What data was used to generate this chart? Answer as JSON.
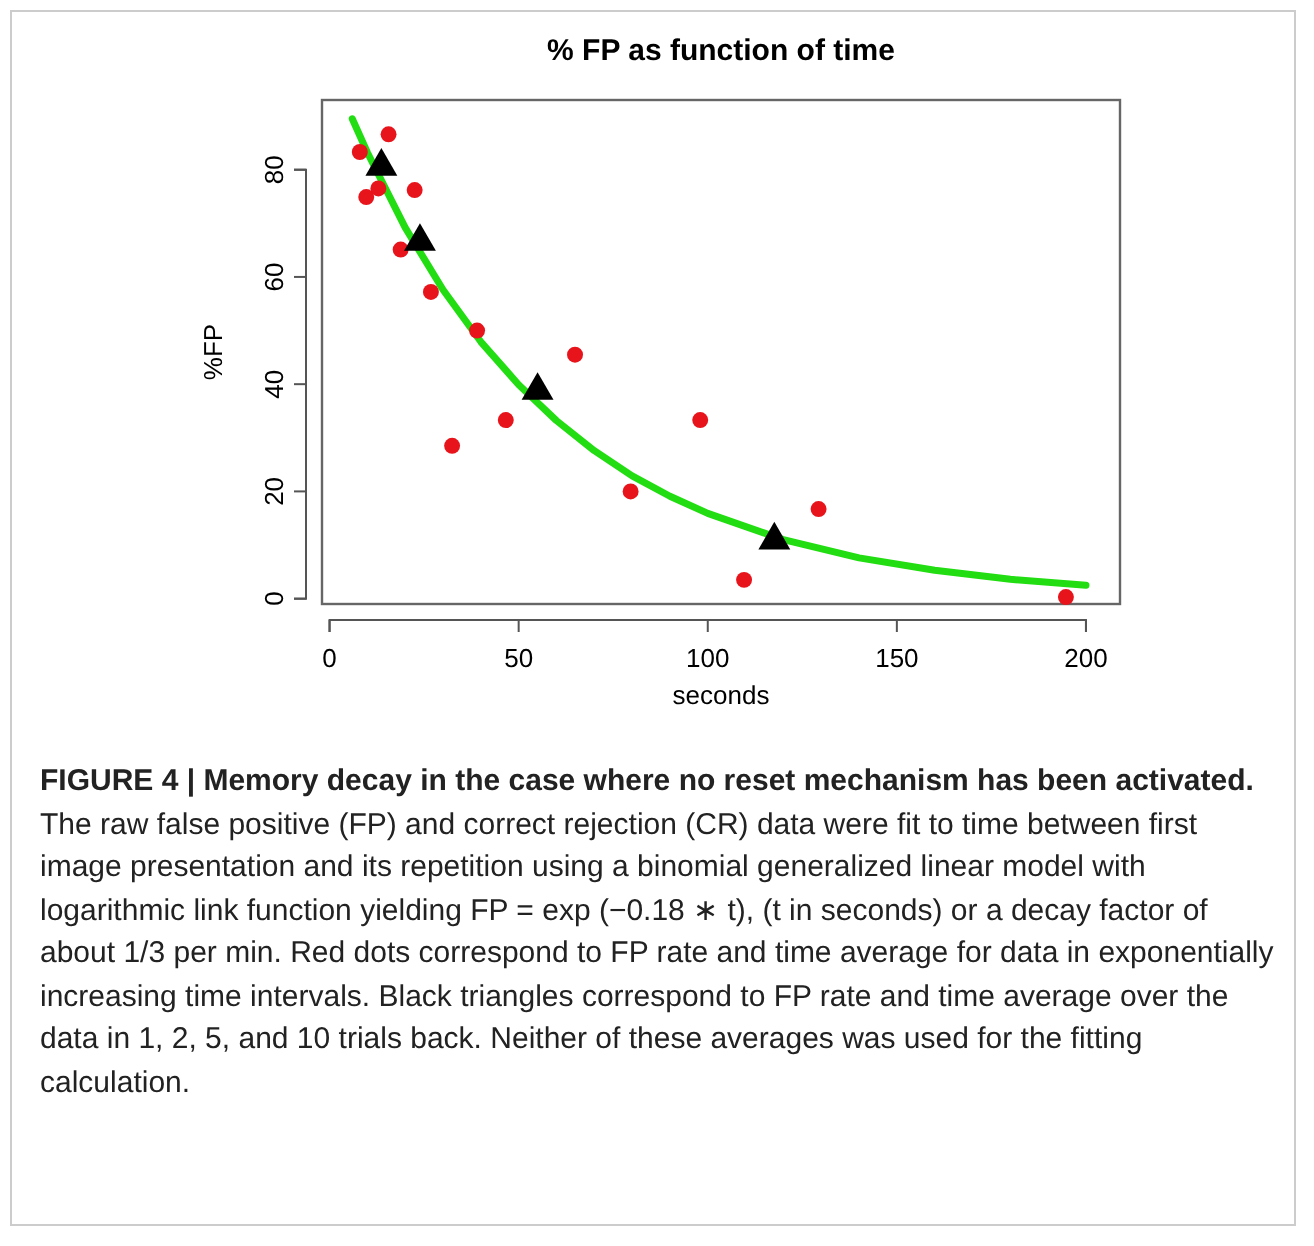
{
  "chart_data": {
    "type": "scatter",
    "title": "% FP as function of time",
    "xlabel": "seconds",
    "ylabel": "%FP",
    "xlim": [
      -2,
      209
    ],
    "ylim": [
      -1,
      93
    ],
    "xticks": [
      0,
      50,
      100,
      150,
      200
    ],
    "yticks": [
      0,
      20,
      40,
      60,
      80
    ],
    "grid": false,
    "series": [
      {
        "type": "line",
        "color": "#22dd11",
        "marker": "none",
        "line_style": "solid",
        "x": [
          6,
          10,
          20,
          30,
          40,
          50,
          60,
          70,
          80,
          90,
          100,
          120,
          140,
          160,
          180,
          200
        ],
        "values": [
          89.5,
          83.2,
          69.2,
          57.6,
          47.9,
          39.9,
          33.2,
          27.6,
          22.9,
          19.1,
          15.9,
          11.0,
          7.6,
          5.3,
          3.6,
          2.5
        ]
      },
      {
        "color": "#e8141b",
        "marker": "circle",
        "x": [
          8,
          9.7,
          12.9,
          15.6,
          18.8,
          22.5,
          26.8,
          32.4,
          39,
          46.6,
          64.9,
          79.6,
          98,
          109.6,
          129.3,
          194.7
        ],
        "values": [
          83.3,
          74.9,
          76.5,
          86.6,
          65.1,
          76.2,
          57.2,
          28.5,
          50,
          33.3,
          45.5,
          20,
          33.3,
          3.5,
          16.7,
          0.3
        ]
      },
      {
        "color": "#000000",
        "marker": "triangle",
        "x": [
          13.7,
          23.9,
          55,
          117.6
        ],
        "values": [
          80.6,
          66.6,
          38.8,
          10.9
        ]
      }
    ],
    "annotations": [
      "FIGURE 4 | Memory decay in the case where no reset mechanism has been activated.",
      "The raw false positive (FP) and correct rejection (CR) data were fit to time between first image presentation and its repetition using a binomial generalized linear model with logarithmic link function yielding FP = exp (−0.18 ∗ t), (t in seconds) or a decay factor of about 1/3 per min. Red dots correspond to FP rate and time average for data in exponentially increasing time intervals. Black triangles correspond to FP rate and time average over the data in 1, 2, 5, and 10 trials back. Neither of these averages was used for the fitting calculation."
    ]
  }
}
